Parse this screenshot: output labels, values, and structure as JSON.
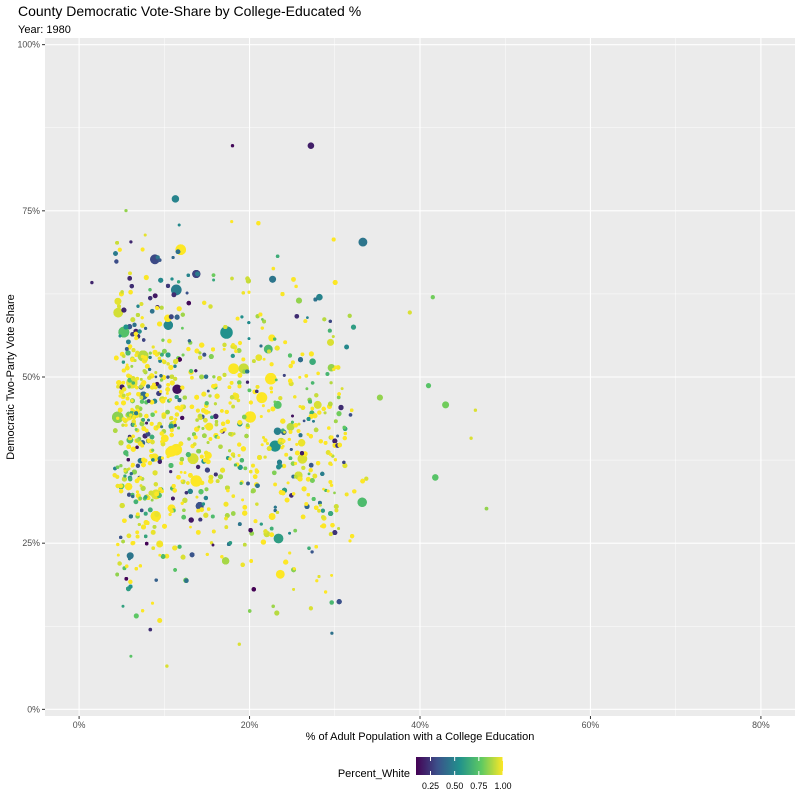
{
  "chart_data": {
    "type": "scatter",
    "title": "County Democratic Vote-Share by College-Educated %",
    "subtitle": "Year: 1980",
    "xlabel": "% of Adult Population with a College Education",
    "ylabel": "Democratic Two-Party Vote Share",
    "xlim": [
      -0.04,
      0.84
    ],
    "ylim": [
      -0.01,
      1.01
    ],
    "x_ticks": [
      0,
      0.2,
      0.4,
      0.6,
      0.8
    ],
    "x_tick_labels": [
      "0%",
      "20%",
      "40%",
      "60%",
      "80%"
    ],
    "y_ticks": [
      0,
      0.25,
      0.5,
      0.75,
      1.0
    ],
    "y_tick_labels": [
      "0%",
      "25%",
      "50%",
      "75%",
      "100%"
    ],
    "grid": true,
    "color_variable": "Percent_White",
    "colorbar_range": [
      0.1,
      1.0
    ],
    "colorbar_ticks": [
      0.25,
      0.5,
      0.75,
      1.0
    ],
    "colorbar_tick_labels": [
      "0.25",
      "0.50",
      "0.75",
      "1.00"
    ],
    "legend_position": "bottom",
    "palette": [
      "#440154",
      "#3b528b",
      "#21918c",
      "#5ec962",
      "#fde725"
    ],
    "background": "#ebebeb",
    "grid_color": "#ffffff",
    "highlight_points": [
      {
        "x": 0.272,
        "y": 0.848,
        "white": 0.18,
        "size": 1.3
      },
      {
        "x": 0.18,
        "y": 0.848,
        "white": 0.12,
        "size": 0.6
      },
      {
        "x": 0.333,
        "y": 0.703,
        "white": 0.45,
        "size": 1.8
      },
      {
        "x": 0.113,
        "y": 0.768,
        "white": 0.5,
        "size": 1.5
      },
      {
        "x": 0.089,
        "y": 0.677,
        "white": 0.3,
        "size": 2.0
      },
      {
        "x": 0.114,
        "y": 0.631,
        "white": 0.48,
        "size": 2.2
      },
      {
        "x": 0.173,
        "y": 0.567,
        "white": 0.55,
        "size": 2.6
      },
      {
        "x": 0.227,
        "y": 0.647,
        "white": 0.45,
        "size": 1.4
      },
      {
        "x": 0.282,
        "y": 0.62,
        "white": 0.5,
        "size": 1.3
      },
      {
        "x": 0.015,
        "y": 0.642,
        "white": 0.2,
        "size": 0.6
      },
      {
        "x": 0.23,
        "y": 0.396,
        "white": 0.55,
        "size": 2.3
      },
      {
        "x": 0.234,
        "y": 0.257,
        "white": 0.6,
        "size": 2.0
      },
      {
        "x": 0.274,
        "y": 0.523,
        "white": 0.65,
        "size": 1.3
      },
      {
        "x": 0.296,
        "y": 0.514,
        "white": 0.85,
        "size": 1.5
      },
      {
        "x": 0.353,
        "y": 0.469,
        "white": 0.85,
        "size": 1.2
      },
      {
        "x": 0.41,
        "y": 0.487,
        "white": 0.75,
        "size": 1.0
      },
      {
        "x": 0.43,
        "y": 0.458,
        "white": 0.8,
        "size": 1.4
      },
      {
        "x": 0.415,
        "y": 0.62,
        "white": 0.8,
        "size": 0.8
      },
      {
        "x": 0.388,
        "y": 0.597,
        "white": 0.95,
        "size": 0.8
      },
      {
        "x": 0.418,
        "y": 0.349,
        "white": 0.75,
        "size": 1.3
      },
      {
        "x": 0.478,
        "y": 0.302,
        "white": 0.85,
        "size": 0.7
      },
      {
        "x": 0.46,
        "y": 0.408,
        "white": 0.95,
        "size": 0.6
      },
      {
        "x": 0.465,
        "y": 0.45,
        "white": 0.95,
        "size": 0.6
      },
      {
        "x": 0.188,
        "y": 0.098,
        "white": 0.95,
        "size": 0.6
      },
      {
        "x": 0.103,
        "y": 0.065,
        "white": 0.95,
        "size": 0.6
      },
      {
        "x": 0.232,
        "y": 0.145,
        "white": 0.9,
        "size": 1.0
      },
      {
        "x": 0.272,
        "y": 0.152,
        "white": 0.95,
        "size": 0.8
      },
      {
        "x": 0.287,
        "y": 0.276,
        "white": 1.0,
        "size": 1.0
      },
      {
        "x": 0.337,
        "y": 0.347,
        "white": 0.95,
        "size": 0.8
      },
      {
        "x": 0.295,
        "y": 0.552,
        "white": 0.95,
        "size": 1.4
      },
      {
        "x": 0.322,
        "y": 0.575,
        "white": 0.6,
        "size": 1.0
      },
      {
        "x": 0.262,
        "y": 0.377,
        "white": 0.95,
        "size": 2.0
      },
      {
        "x": 0.248,
        "y": 0.425,
        "white": 0.9,
        "size": 1.6
      },
      {
        "x": 0.28,
        "y": 0.458,
        "white": 0.95,
        "size": 1.6
      },
      {
        "x": 0.222,
        "y": 0.542,
        "white": 0.7,
        "size": 1.8
      },
      {
        "x": 0.233,
        "y": 0.458,
        "white": 0.75,
        "size": 1.6
      },
      {
        "x": 0.305,
        "y": 0.445,
        "white": 0.8,
        "size": 1.0
      },
      {
        "x": 0.258,
        "y": 0.615,
        "white": 0.85,
        "size": 1.2
      }
    ]
  }
}
